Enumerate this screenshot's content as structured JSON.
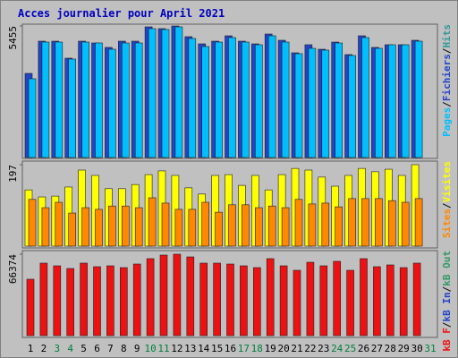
{
  "chart_data": [
    {
      "type": "bar",
      "title": "Acces journalier pour April 2021",
      "ylim": [
        0,
        5455
      ],
      "yticks": [
        5455
      ],
      "legend_separator": "/",
      "series": [
        {
          "name": "Pages",
          "color": "#00bfff",
          "values": [
            3266,
            4787,
            4787,
            4082,
            4787,
            4750,
            4490,
            4750,
            4750,
            5344,
            5307,
            5418,
            4936,
            4602,
            4787,
            4973,
            4787,
            4676,
            5047,
            4787,
            4305,
            4527,
            4453,
            4750,
            4231,
            4973,
            4527,
            4676,
            4676,
            4824,
            null
          ]
        },
        {
          "name": "Fichiers",
          "color": "#2244cc",
          "values": [
            3488,
            4824,
            4824,
            4119,
            4824,
            4750,
            4565,
            4824,
            4824,
            5418,
            5344,
            5455,
            5010,
            4713,
            4824,
            5047,
            4824,
            4713,
            5121,
            4861,
            4342,
            4676,
            4490,
            4787,
            4268,
            5047,
            4565,
            4676,
            4676,
            4861,
            null
          ]
        },
        {
          "name": "Hits",
          "color": "#339999",
          "values": [
            null,
            null,
            null,
            null,
            null,
            null,
            null,
            null,
            null,
            null,
            null,
            null,
            null,
            null,
            null,
            null,
            null,
            null,
            null,
            null,
            null,
            null,
            null,
            null,
            null,
            null,
            null,
            null,
            null,
            null,
            null
          ]
        }
      ]
    },
    {
      "type": "bar",
      "ylim": [
        0,
        197
      ],
      "yticks": [
        197
      ],
      "legend_separator": "/",
      "series": [
        {
          "name": "Sites",
          "color": "#ff8800",
          "values": [
            113,
            93,
            106,
            80,
            93,
            89,
            97,
            97,
            93,
            117,
            104,
            89,
            89,
            106,
            82,
            100,
            100,
            93,
            97,
            93,
            113,
            102,
            104,
            95,
            115,
            115,
            115,
            110,
            106,
            115,
            null
          ]
        },
        {
          "name": "Visites",
          "color": "#ffff00",
          "values": [
            136,
            119,
            121,
            143,
            184,
            171,
            139,
            139,
            149,
            173,
            182,
            171,
            141,
            126,
            171,
            173,
            147,
            171,
            136,
            173,
            188,
            184,
            167,
            145,
            171,
            188,
            180,
            186,
            171,
            197,
            null
          ]
        }
      ]
    },
    {
      "type": "bar",
      "ylim": [
        0,
        66374
      ],
      "yticks": [
        66374
      ],
      "legend_separator": "/",
      "categories": [
        "1",
        "2",
        "3",
        "4",
        "5",
        "6",
        "7",
        "8",
        "9",
        "10",
        "11",
        "12",
        "13",
        "14",
        "15",
        "16",
        "17",
        "18",
        "19",
        "20",
        "21",
        "22",
        "23",
        "24",
        "25",
        "26",
        "27",
        "28",
        "29",
        "30",
        "31"
      ],
      "category_colors": [
        "#000000",
        "#000000",
        "#00803c",
        "#00803c",
        "#000000",
        "#000000",
        "#000000",
        "#000000",
        "#000000",
        "#00803c",
        "#00803c",
        "#000000",
        "#000000",
        "#000000",
        "#000000",
        "#000000",
        "#00803c",
        "#00803c",
        "#000000",
        "#000000",
        "#000000",
        "#000000",
        "#000000",
        "#00803c",
        "#00803c",
        "#000000",
        "#000000",
        "#000000",
        "#000000",
        "#000000",
        "#00803c"
      ],
      "series": [
        {
          "name": "kB F",
          "color": "#ee1111",
          "values": [
            45952,
            59081,
            56893,
            54705,
            59081,
            56164,
            56893,
            55434,
            58352,
            62728,
            65646,
            66374,
            64187,
            59081,
            59081,
            58352,
            56893,
            55434,
            62728,
            56893,
            53246,
            59811,
            56893,
            60540,
            53246,
            62728,
            56164,
            57623,
            55434,
            59081,
            null
          ]
        },
        {
          "name": "kB In",
          "color": "#2244cc",
          "values": [
            null,
            null,
            null,
            null,
            null,
            null,
            null,
            null,
            null,
            null,
            null,
            null,
            null,
            null,
            null,
            null,
            null,
            null,
            null,
            null,
            null,
            null,
            null,
            null,
            null,
            null,
            null,
            null,
            null,
            null,
            null
          ]
        },
        {
          "name": "kB Out",
          "color": "#339966",
          "values": [
            null,
            null,
            null,
            null,
            null,
            null,
            null,
            null,
            null,
            null,
            null,
            null,
            null,
            null,
            null,
            null,
            null,
            null,
            null,
            null,
            null,
            null,
            null,
            null,
            null,
            null,
            null,
            null,
            null,
            null,
            null
          ]
        }
      ]
    }
  ]
}
